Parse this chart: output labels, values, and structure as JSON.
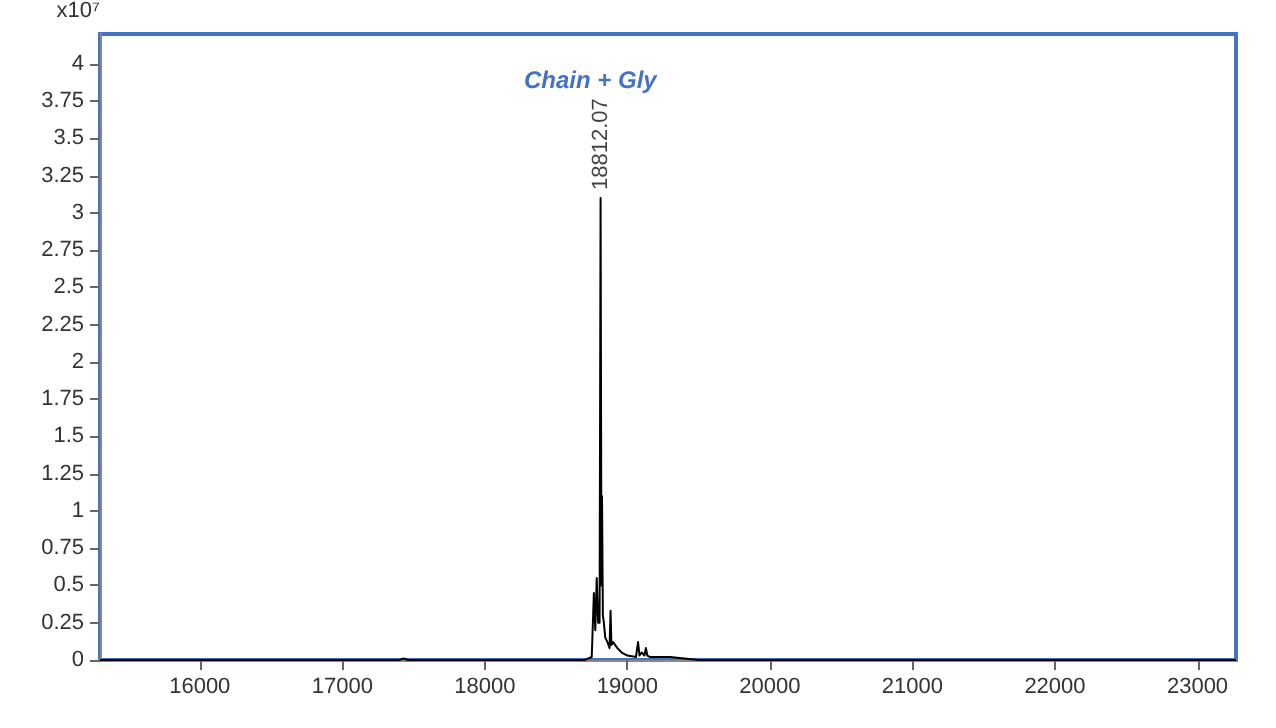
{
  "chart_data": {
    "type": "line",
    "ylabel": "x10⁷",
    "annotations": [
      "Chain + Gly",
      {
        "text": "18812.07",
        "x": 18812.07,
        "y": 3.1
      }
    ],
    "x": [
      15300,
      17400,
      17430,
      17460,
      18700,
      18750,
      18765,
      18775,
      18785,
      18795,
      18800,
      18805,
      18812.07,
      18818,
      18822,
      18828,
      18835,
      18845,
      18860,
      18875,
      18882,
      18888,
      18900,
      18930,
      18960,
      19000,
      19060,
      19075,
      19085,
      19100,
      19120,
      19130,
      19140,
      19160,
      19200,
      19300,
      19400,
      19500,
      20000,
      22300,
      23270
    ],
    "series": [
      {
        "color": "#000000",
        "values": [
          0,
          0,
          0.01,
          0,
          0,
          0.02,
          0.45,
          0.2,
          0.55,
          0.25,
          0.3,
          0.25,
          3.1,
          0.5,
          1.1,
          0.3,
          0.25,
          0.15,
          0.12,
          0.08,
          0.33,
          0.1,
          0.12,
          0.08,
          0.05,
          0.03,
          0.02,
          0.12,
          0.03,
          0.05,
          0.03,
          0.08,
          0.03,
          0.02,
          0.02,
          0.02,
          0.01,
          0,
          0,
          0,
          0
        ]
      }
    ],
    "xlim": [
      15300,
      23270
    ],
    "xticks": [
      16000,
      17000,
      18000,
      19000,
      20000,
      21000,
      22000,
      23000
    ],
    "ylim": [
      0,
      4.2
    ],
    "yticks": [
      0,
      0.25,
      0.5,
      0.75,
      1,
      1.25,
      1.5,
      1.75,
      2,
      2.25,
      2.5,
      2.75,
      3,
      3.25,
      3.5,
      3.75,
      4
    ],
    "marker": "none",
    "line_style": "solid"
  }
}
